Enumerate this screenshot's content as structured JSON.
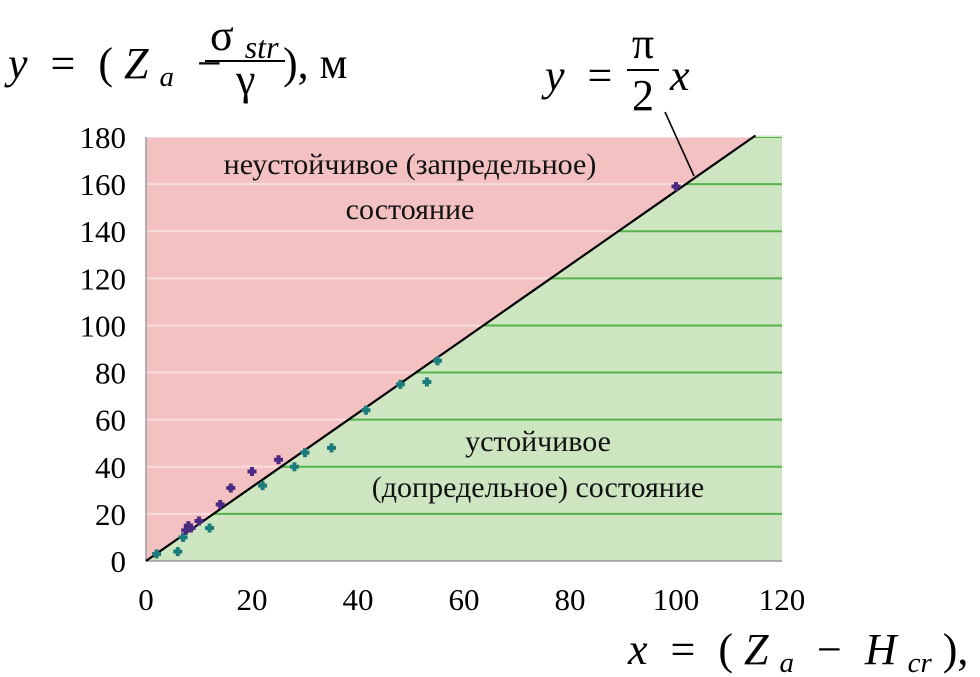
{
  "chart_data": {
    "type": "scatter",
    "x_axis": {
      "range": [
        0,
        120
      ],
      "ticks": [
        0,
        20,
        40,
        60,
        80,
        100,
        120
      ]
    },
    "y_axis": {
      "range": [
        0,
        180
      ],
      "ticks": [
        0,
        20,
        40,
        60,
        80,
        100,
        120,
        140,
        160,
        180
      ]
    },
    "grid": true,
    "x_label": {
      "var": "x",
      "eq": "=",
      "open": "(",
      "Z": "Z",
      "a": "a",
      "minus": "−",
      "H": "H",
      "cr": "cr",
      "close": "), м"
    },
    "y_label": {
      "var": "y",
      "eq": "=",
      "open": "(",
      "Z": "Z",
      "a": "a",
      "minus": "−",
      "sigma": "σ",
      "str": "str",
      "gamma": "γ",
      "close": "), м"
    },
    "line_label": {
      "y": "y",
      "eq": "=",
      "pi": "π",
      "two": "2",
      "x": "x"
    },
    "line": {
      "formula": "y = (π/2)·x",
      "slope": 1.5708,
      "x_range": [
        0,
        115
      ]
    },
    "regions": {
      "unstable": {
        "line1": "неустойчивое (запредельное)",
        "line2": "состояние",
        "color": "#f3c1c1"
      },
      "stable": {
        "line1": "устойчивое",
        "line2": "(допредельное) состояние",
        "color": "#cde5c1"
      }
    },
    "colors": {
      "grid_unstable": "#f7dede",
      "grid_stable": "#54b34a",
      "line": "#000000",
      "point_low": "#1c7c7c",
      "point_high": "#4a2a82"
    },
    "points": [
      {
        "x": 2,
        "y": 3
      },
      {
        "x": 6,
        "y": 4
      },
      {
        "x": 7,
        "y": 10
      },
      {
        "x": 7.5,
        "y": 13
      },
      {
        "x": 8,
        "y": 15
      },
      {
        "x": 8.5,
        "y": 14
      },
      {
        "x": 10,
        "y": 17
      },
      {
        "x": 12,
        "y": 14
      },
      {
        "x": 14,
        "y": 24
      },
      {
        "x": 16,
        "y": 31
      },
      {
        "x": 20,
        "y": 38
      },
      {
        "x": 22,
        "y": 32
      },
      {
        "x": 25,
        "y": 43
      },
      {
        "x": 28,
        "y": 40
      },
      {
        "x": 30,
        "y": 46
      },
      {
        "x": 35,
        "y": 48
      },
      {
        "x": 41.5,
        "y": 64
      },
      {
        "x": 48,
        "y": 75
      },
      {
        "x": 53,
        "y": 76
      },
      {
        "x": 55,
        "y": 85
      },
      {
        "x": 100,
        "y": 159
      }
    ]
  }
}
